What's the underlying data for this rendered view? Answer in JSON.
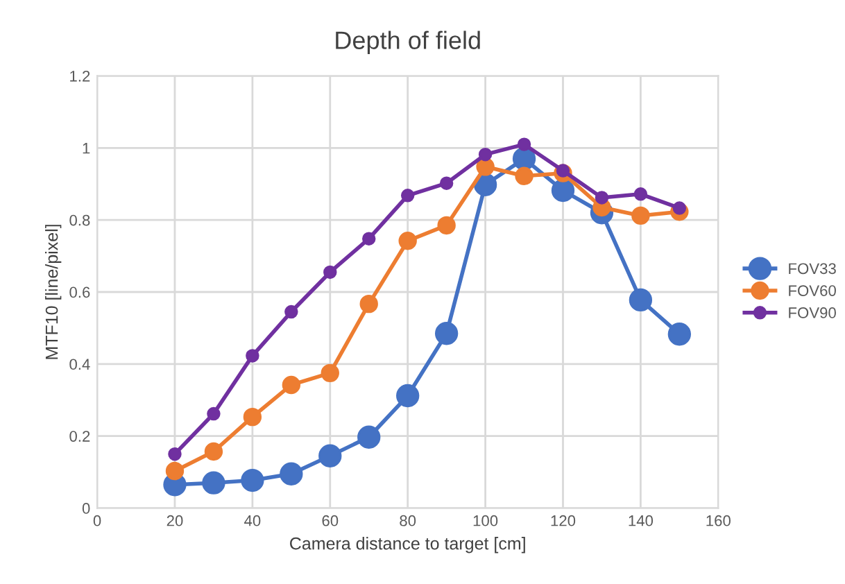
{
  "chart_data": {
    "type": "line",
    "title": "Depth of field",
    "xlabel": "Camera distance to target [cm]",
    "ylabel": "MTF10 [line/pixel]",
    "x": [
      20,
      30,
      40,
      50,
      60,
      70,
      80,
      90,
      100,
      110,
      120,
      130,
      140,
      150
    ],
    "series": [
      {
        "name": "FOV33",
        "color": "#4472c4",
        "values": [
          0.065,
          0.07,
          0.077,
          0.095,
          0.145,
          0.197,
          0.312,
          0.485,
          0.898,
          0.97,
          0.882,
          0.82,
          0.578,
          0.483
        ]
      },
      {
        "name": "FOV60",
        "color": "#ed7d31",
        "values": [
          0.103,
          0.157,
          0.253,
          0.342,
          0.375,
          0.567,
          0.742,
          0.785,
          0.948,
          0.922,
          0.93,
          0.835,
          0.812,
          0.823
        ]
      },
      {
        "name": "FOV90",
        "color": "#7030a0",
        "values": [
          0.15,
          0.262,
          0.423,
          0.545,
          0.655,
          0.748,
          0.868,
          0.902,
          0.982,
          1.01,
          0.937,
          0.862,
          0.872,
          0.833
        ]
      }
    ],
    "xlim": [
      0,
      160
    ],
    "xticks": [
      0,
      20,
      40,
      60,
      80,
      100,
      120,
      140,
      160
    ],
    "ylim": [
      0,
      1.2
    ],
    "yticks": [
      0,
      0.2,
      0.4,
      0.6,
      0.8,
      1,
      1.2
    ],
    "grid": true,
    "legend": "right",
    "marker": "circle",
    "line_style": "solid"
  }
}
